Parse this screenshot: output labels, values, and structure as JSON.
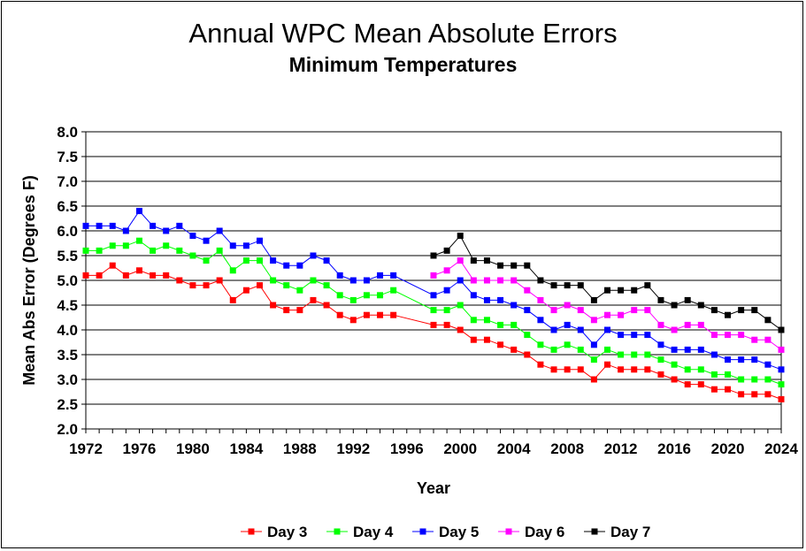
{
  "chart_data": {
    "type": "line",
    "title": "Annual WPC Mean Absolute Errors",
    "subtitle": "Minimum Temperatures",
    "xlabel": "Year",
    "ylabel": "Mean Abs Error (Degrees F)",
    "xlim": [
      1972,
      2024
    ],
    "ylim": [
      2.0,
      8.0
    ],
    "x_ticks": [
      "1972",
      "1976",
      "1980",
      "1984",
      "1988",
      "1992",
      "1996",
      "2000",
      "2004",
      "2008",
      "2012",
      "2016",
      "2020",
      "2024"
    ],
    "y_ticks": [
      "2.0",
      "2.5",
      "3.0",
      "3.5",
      "4.0",
      "4.5",
      "5.0",
      "5.5",
      "6.0",
      "6.5",
      "7.0",
      "7.5",
      "8.0"
    ],
    "grid": "horizontal",
    "legend_position": "bottom",
    "series": [
      {
        "name": "Day 3",
        "color": "#ff0000",
        "x": [
          1972,
          1973,
          1974,
          1975,
          1976,
          1977,
          1978,
          1979,
          1980,
          1981,
          1982,
          1983,
          1984,
          1985,
          1986,
          1987,
          1988,
          1989,
          1990,
          1991,
          1992,
          1993,
          1994,
          1995,
          1998,
          1999,
          2000,
          2001,
          2002,
          2003,
          2004,
          2005,
          2006,
          2007,
          2008,
          2009,
          2010,
          2011,
          2012,
          2013,
          2014,
          2015,
          2016,
          2017,
          2018,
          2019,
          2020,
          2021,
          2022,
          2023,
          2024
        ],
        "y": [
          5.1,
          5.1,
          5.3,
          5.1,
          5.2,
          5.1,
          5.1,
          5.0,
          4.9,
          4.9,
          5.0,
          4.6,
          4.8,
          4.9,
          4.5,
          4.4,
          4.4,
          4.6,
          4.5,
          4.3,
          4.2,
          4.3,
          4.3,
          4.3,
          4.1,
          4.1,
          4.0,
          3.8,
          3.8,
          3.7,
          3.6,
          3.5,
          3.3,
          3.2,
          3.2,
          3.2,
          3.0,
          3.3,
          3.2,
          3.2,
          3.2,
          3.1,
          3.0,
          2.9,
          2.9,
          2.8,
          2.8,
          2.7,
          2.7,
          2.7,
          2.6
        ]
      },
      {
        "name": "Day 4",
        "color": "#00ff00",
        "x": [
          1972,
          1973,
          1974,
          1975,
          1976,
          1977,
          1978,
          1979,
          1980,
          1981,
          1982,
          1983,
          1984,
          1985,
          1986,
          1987,
          1988,
          1989,
          1990,
          1991,
          1992,
          1993,
          1994,
          1995,
          1998,
          1999,
          2000,
          2001,
          2002,
          2003,
          2004,
          2005,
          2006,
          2007,
          2008,
          2009,
          2010,
          2011,
          2012,
          2013,
          2014,
          2015,
          2016,
          2017,
          2018,
          2019,
          2020,
          2021,
          2022,
          2023,
          2024
        ],
        "y": [
          5.6,
          5.6,
          5.7,
          5.7,
          5.8,
          5.6,
          5.7,
          5.6,
          5.5,
          5.4,
          5.6,
          5.2,
          5.4,
          5.4,
          5.0,
          4.9,
          4.8,
          5.0,
          4.9,
          4.7,
          4.6,
          4.7,
          4.7,
          4.8,
          4.4,
          4.4,
          4.5,
          4.2,
          4.2,
          4.1,
          4.1,
          3.9,
          3.7,
          3.6,
          3.7,
          3.6,
          3.4,
          3.6,
          3.5,
          3.5,
          3.5,
          3.4,
          3.3,
          3.2,
          3.2,
          3.1,
          3.1,
          3.0,
          3.0,
          3.0,
          2.9
        ]
      },
      {
        "name": "Day 5",
        "color": "#0000ff",
        "x": [
          1972,
          1973,
          1974,
          1975,
          1976,
          1977,
          1978,
          1979,
          1980,
          1981,
          1982,
          1983,
          1984,
          1985,
          1986,
          1987,
          1988,
          1989,
          1990,
          1991,
          1992,
          1993,
          1994,
          1995,
          1998,
          1999,
          2000,
          2001,
          2002,
          2003,
          2004,
          2005,
          2006,
          2007,
          2008,
          2009,
          2010,
          2011,
          2012,
          2013,
          2014,
          2015,
          2016,
          2017,
          2018,
          2019,
          2020,
          2021,
          2022,
          2023,
          2024
        ],
        "y": [
          6.1,
          6.1,
          6.1,
          6.0,
          6.4,
          6.1,
          6.0,
          6.1,
          5.9,
          5.8,
          6.0,
          5.7,
          5.7,
          5.8,
          5.4,
          5.3,
          5.3,
          5.5,
          5.4,
          5.1,
          5.0,
          5.0,
          5.1,
          5.1,
          4.7,
          4.8,
          5.0,
          4.7,
          4.6,
          4.6,
          4.5,
          4.4,
          4.2,
          4.0,
          4.1,
          4.0,
          3.7,
          4.0,
          3.9,
          3.9,
          3.9,
          3.7,
          3.6,
          3.6,
          3.6,
          3.5,
          3.4,
          3.4,
          3.4,
          3.3,
          3.2
        ]
      },
      {
        "name": "Day 6",
        "color": "#ff00ff",
        "x": [
          1998,
          1999,
          2000,
          2001,
          2002,
          2003,
          2004,
          2005,
          2006,
          2007,
          2008,
          2009,
          2010,
          2011,
          2012,
          2013,
          2014,
          2015,
          2016,
          2017,
          2018,
          2019,
          2020,
          2021,
          2022,
          2023,
          2024
        ],
        "y": [
          5.1,
          5.2,
          5.4,
          5.0,
          5.0,
          5.0,
          5.0,
          4.8,
          4.6,
          4.4,
          4.5,
          4.4,
          4.2,
          4.3,
          4.3,
          4.4,
          4.4,
          4.1,
          4.0,
          4.1,
          4.1,
          3.9,
          3.9,
          3.9,
          3.8,
          3.8,
          3.6
        ]
      },
      {
        "name": "Day 7",
        "color": "#000000",
        "x": [
          1998,
          1999,
          2000,
          2001,
          2002,
          2003,
          2004,
          2005,
          2006,
          2007,
          2008,
          2009,
          2010,
          2011,
          2012,
          2013,
          2014,
          2015,
          2016,
          2017,
          2018,
          2019,
          2020,
          2021,
          2022,
          2023,
          2024
        ],
        "y": [
          5.5,
          5.6,
          5.9,
          5.4,
          5.4,
          5.3,
          5.3,
          5.3,
          5.0,
          4.9,
          4.9,
          4.9,
          4.6,
          4.8,
          4.8,
          4.8,
          4.9,
          4.6,
          4.5,
          4.6,
          4.5,
          4.4,
          4.3,
          4.4,
          4.4,
          4.2,
          4.0
        ]
      }
    ]
  }
}
